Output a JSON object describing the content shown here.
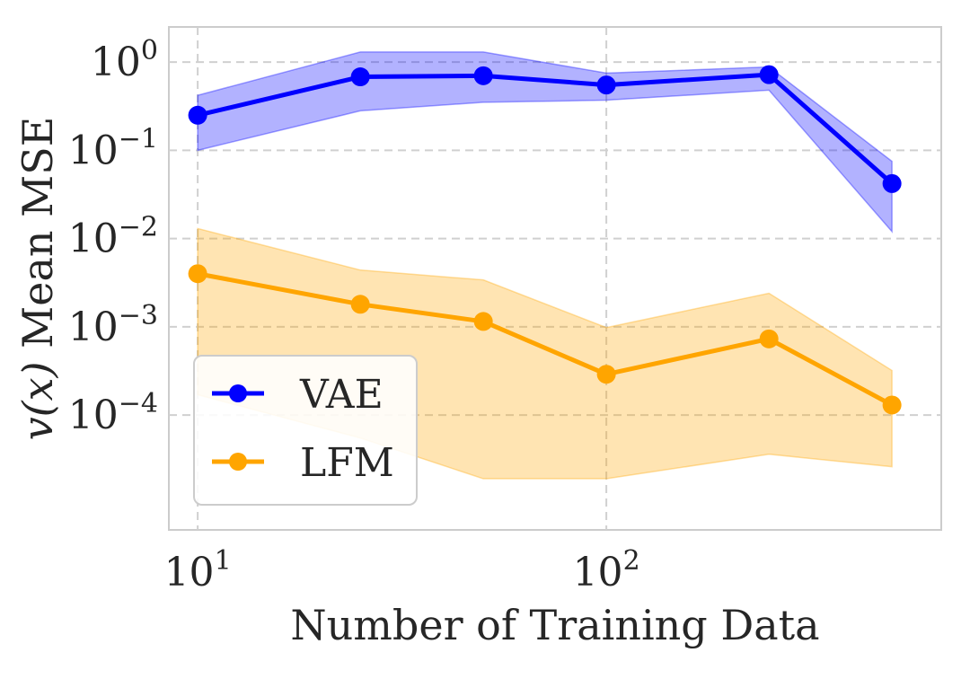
{
  "chart_data": {
    "type": "line",
    "title": "",
    "xlabel": "Number of Training Data",
    "ylabel_var": "v(x)",
    "ylabel_rest": " Mean MSE",
    "x_scale": "log",
    "y_scale": "log",
    "xlim": [
      8.5,
      660
    ],
    "ylim": [
      5e-06,
      2.5
    ],
    "x": [
      10,
      25,
      50,
      100,
      250,
      500
    ],
    "x_ticks": [
      {
        "value": 10,
        "base": "10",
        "exp": "1"
      },
      {
        "value": 100,
        "base": "10",
        "exp": "2"
      }
    ],
    "y_ticks": [
      {
        "value": 1,
        "base": "10",
        "exp": "0"
      },
      {
        "value": 0.1,
        "base": "10",
        "exp": "−1"
      },
      {
        "value": 0.01,
        "base": "10",
        "exp": "−2"
      },
      {
        "value": 0.001,
        "base": "10",
        "exp": "−3"
      },
      {
        "value": 0.0001,
        "base": "10",
        "exp": "−4"
      }
    ],
    "grid": true,
    "legend_position": "lower-left",
    "series": [
      {
        "name": "VAE",
        "color": "#0000ff",
        "values": [
          0.25,
          0.68,
          0.7,
          0.55,
          0.72,
          0.042
        ],
        "lower": [
          0.1,
          0.28,
          0.35,
          0.37,
          0.48,
          0.012
        ],
        "upper": [
          0.42,
          1.3,
          1.3,
          0.75,
          0.88,
          0.075
        ]
      },
      {
        "name": "LFM",
        "color": "#ffa500",
        "values": [
          0.004,
          0.0018,
          0.00115,
          0.00029,
          0.00073,
          0.00013
        ],
        "lower": [
          0.00017,
          5.5e-05,
          1.9e-05,
          1.9e-05,
          3.6e-05,
          2.6e-05
        ],
        "upper": [
          0.013,
          0.0044,
          0.0034,
          0.00098,
          0.0024,
          0.00032
        ]
      }
    ]
  }
}
